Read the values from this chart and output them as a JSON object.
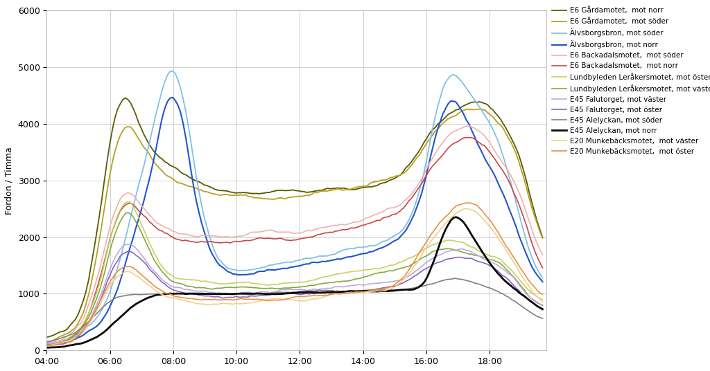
{
  "ylabel": "Fordon / Timma",
  "ylim": [
    0,
    6000
  ],
  "yticks": [
    0,
    1000,
    2000,
    3000,
    4000,
    5000,
    6000
  ],
  "xtick_hours": [
    4,
    6,
    8,
    10,
    12,
    14,
    16,
    18
  ],
  "background_color": "#ffffff",
  "grid_color": "#c8c8c8",
  "series": [
    {
      "label": "E6 Gårdamotet,  mot norr",
      "color": "#5a5a00",
      "lw": 1.3
    },
    {
      "label": "E6 Gårdamotet,  mot söder",
      "color": "#b8a020",
      "lw": 1.3
    },
    {
      "label": "Älvsborgsbron, mot söder",
      "color": "#80c0e8",
      "lw": 1.3
    },
    {
      "label": "Älvsborgsbron, mot norr",
      "color": "#2255cc",
      "lw": 1.5
    },
    {
      "label": "E6 Backadalsmotet,  mot söder",
      "color": "#f0b0b0",
      "lw": 1.2
    },
    {
      "label": "E6 Backadalsmotet,  mot norr",
      "color": "#cc4444",
      "lw": 1.2
    },
    {
      "label": "Lundbyleden Leråkersmotet, mot öster",
      "color": "#c8d060",
      "lw": 1.2
    },
    {
      "label": "Lundbyleden Leråkersmotet, mot väster",
      "color": "#80aa40",
      "lw": 1.2
    },
    {
      "label": "E45 Falutorget, mot väster",
      "color": "#c0a8e0",
      "lw": 1.2
    },
    {
      "label": "E45 Falutorget, mot öster",
      "color": "#8866bb",
      "lw": 1.2
    },
    {
      "label": "E45 Alelyckan, mot söder",
      "color": "#808080",
      "lw": 1.2
    },
    {
      "label": "E45 Alelyckan, mot norr",
      "color": "#080808",
      "lw": 2.0
    },
    {
      "label": "E20 Munkebäcksmotet,  mot väster",
      "color": "#f0d090",
      "lw": 1.2
    },
    {
      "label": "E20 Munkebäcksmotet,  mot öster",
      "color": "#e89040",
      "lw": 1.2
    }
  ]
}
